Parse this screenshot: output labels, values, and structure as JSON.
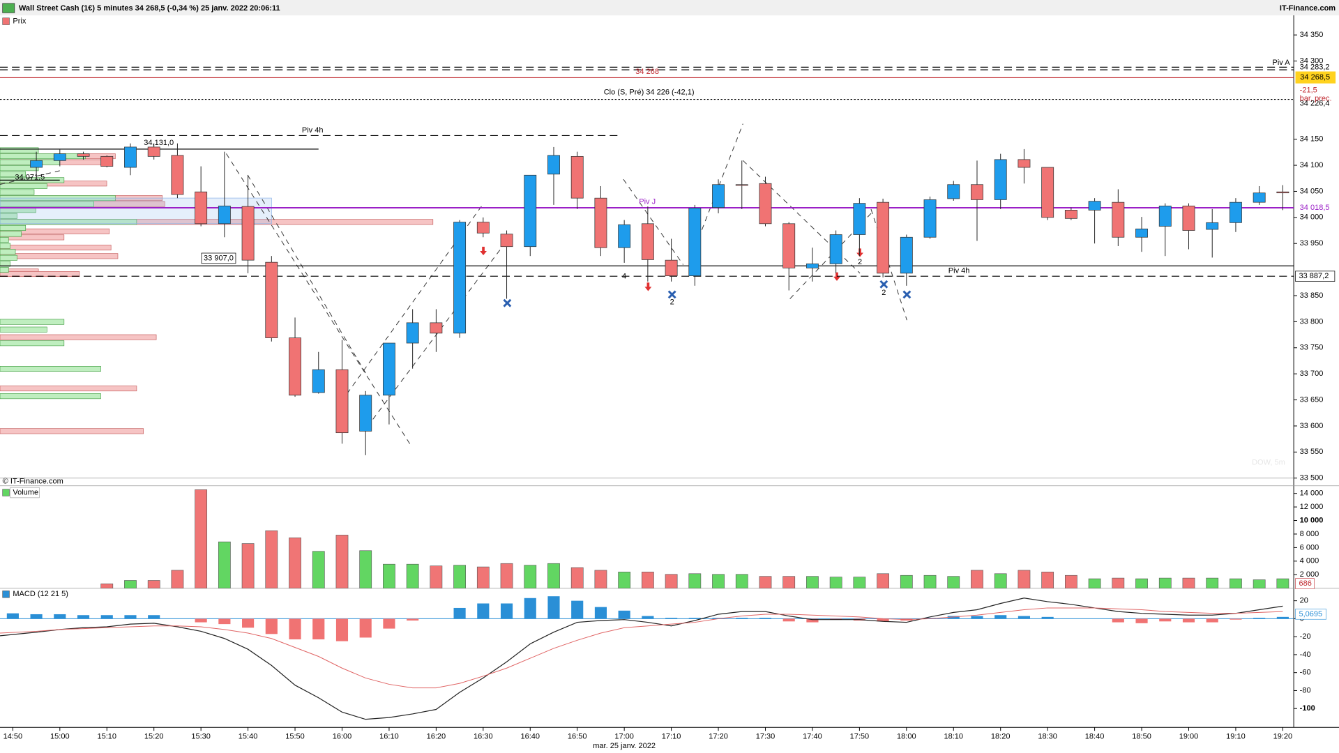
{
  "chart_data": [
    {
      "type": "candlestick",
      "title": "Wall Street Cash (1€) 5 minutes 34 268,5 (-0,34 %) 25 janv. 2022 20:06:11",
      "source": "IT-Finance.com",
      "copyright": "© IT-Finance.com",
      "panel_label": "Prix",
      "watermark": "DOW, 5m",
      "date_label": "mar. 25 janv. 2022",
      "categories": [
        "14:50",
        null,
        "15:00",
        null,
        "15:10",
        null,
        "15:20",
        null,
        "15:30",
        null,
        "15:40",
        null,
        "15:50",
        null,
        "16:00",
        null,
        "16:10",
        null,
        "16:20",
        null,
        "16:30",
        null,
        "16:40",
        null,
        "16:50",
        null,
        "17:00",
        null,
        "17:10",
        null,
        "17:20",
        null,
        "17:30",
        null,
        "17:40",
        null,
        "17:50",
        null,
        "18:00",
        null,
        "18:10",
        null,
        "18:20",
        null,
        "18:30",
        null,
        "18:40",
        null,
        "18:50",
        null,
        "19:00",
        null,
        "19:10",
        null,
        "19:20"
      ],
      "open": [
        null,
        34096,
        34109,
        34122,
        34117,
        34096,
        34135,
        34119,
        34049,
        33988,
        34021,
        33914,
        33769,
        33664,
        33708,
        33590,
        33659,
        33759,
        33798,
        33778,
        33991,
        33968,
        33944,
        34083,
        34117,
        34037,
        33942,
        33988,
        33918,
        33888,
        34019,
        34063,
        34065,
        33988,
        33903,
        33911,
        33967,
        34029,
        33893,
        33962,
        34036,
        34063,
        34034,
        34111,
        34096,
        34014,
        34014,
        34029,
        33962,
        33983,
        34022,
        33977,
        33990,
        34029,
        34049
      ],
      "high": [
        null,
        34126,
        34131,
        34126,
        34119,
        34142,
        34142,
        34142,
        34098,
        34126,
        34081,
        33926,
        33808,
        33742,
        33765,
        33667,
        33759,
        33824,
        33824,
        33995,
        34000,
        33975,
        34081,
        34135,
        34126,
        34060,
        33995,
        34021,
        33959,
        34024,
        34073,
        34109,
        34078,
        33991,
        33942,
        33975,
        34037,
        34036,
        33967,
        34040,
        34070,
        34109,
        34122,
        34131,
        34096,
        34019,
        34037,
        34054,
        34001,
        34027,
        34027,
        34016,
        34037,
        34060,
        34062
      ],
      "low": [
        null,
        34073,
        34098,
        34111,
        34096,
        34081,
        34111,
        34037,
        33983,
        33962,
        33893,
        33762,
        33656,
        33662,
        33566,
        33544,
        33603,
        33710,
        33742,
        33769,
        33962,
        33844,
        33926,
        34024,
        34016,
        33926,
        33913,
        33877,
        33877,
        33869,
        34008,
        34016,
        33983,
        33860,
        33877,
        33893,
        33926,
        33885,
        33869,
        33959,
        34032,
        33955,
        34016,
        34065,
        33995,
        33995,
        33950,
        33945,
        33934,
        33926,
        33939,
        33923,
        33972,
        34024,
        34014
      ],
      "close": [
        null,
        34109,
        34122,
        34117,
        34098,
        34135,
        34117,
        34044,
        33988,
        34022,
        33918,
        33769,
        33659,
        33708,
        33587,
        33659,
        33759,
        33798,
        33778,
        33991,
        33970,
        33944,
        34081,
        34119,
        34037,
        33942,
        33986,
        33919,
        33888,
        34018,
        34063,
        34062,
        33988,
        33903,
        33911,
        33967,
        34027,
        33893,
        33962,
        34034,
        34063,
        34034,
        34111,
        34096,
        34000,
        33998,
        34031,
        33962,
        33978,
        34022,
        33975,
        33990,
        34029,
        34047,
        34047
      ],
      "up_color": "#1e9cec",
      "down_color": "#f07373",
      "ylim": [
        33500,
        34363
      ],
      "yticks": [
        {
          "value": 34350,
          "label": "34 350"
        },
        {
          "value": 34300,
          "label": "34 300"
        },
        {
          "value": 34150,
          "label": "34 150"
        },
        {
          "value": 34100,
          "label": "34 100"
        },
        {
          "value": 34050,
          "label": "34 050"
        },
        {
          "value": 34000,
          "label": "34 000"
        },
        {
          "value": 33950,
          "label": "33 950"
        },
        {
          "value": 33850,
          "label": "33 850"
        },
        {
          "value": 33800,
          "label": "33 800"
        },
        {
          "value": 33750,
          "label": "33 750"
        },
        {
          "value": 33700,
          "label": "33 700"
        },
        {
          "value": 33650,
          "label": "33 650"
        },
        {
          "value": 33600,
          "label": "33 600"
        },
        {
          "value": 33550,
          "label": "33 550"
        },
        {
          "value": 33500,
          "label": "33 500"
        }
      ],
      "levels": [
        {
          "text": "Piv A",
          "value": 34283.2,
          "value_label": "34 283,2",
          "style": "dashed",
          "color": "#000000"
        },
        {
          "value": 34268,
          "value_label": "34 268",
          "style": "solid",
          "color": "#c0282f"
        },
        {
          "text": "Clo (S, Pré) 34 226 (-42,1)",
          "value": 34226.4,
          "value_label": "34 226,4",
          "style": "dotted",
          "color": "#000000"
        },
        {
          "text": "Piv 4h",
          "value": 34157,
          "style": "dashed",
          "color": "#000000"
        },
        {
          "value": 34131,
          "value_label": "34,131,0",
          "style": "solid",
          "color": "#000000"
        },
        {
          "value": 34071.5,
          "value_label": "34,071,5",
          "style": "solid",
          "color": "#000000"
        },
        {
          "text": "Piv J",
          "value": 34018.5,
          "value_label": "34 018,5",
          "style": "solid",
          "color": "#9b1fc7"
        },
        {
          "value": 33907,
          "value_label": "33 907,0",
          "style": "solid",
          "color": "#000000"
        },
        {
          "text": "Piv 4h",
          "value": 33887.2,
          "value_label": "33 887,2",
          "style": "dashed",
          "color": "#000000"
        }
      ],
      "last": {
        "value": 34268.5,
        "label": "34 268,5",
        "change": "-21,5",
        "note": "bar. prec."
      },
      "signal_labels": [
        "4",
        "2",
        "2",
        "2"
      ]
    },
    {
      "type": "bar",
      "panel_label": "Volume",
      "values": [
        null,
        null,
        null,
        null,
        650,
        1150,
        1150,
        2650,
        14550,
        6850,
        6600,
        8500,
        7450,
        5450,
        7850,
        5550,
        3550,
        3550,
        3300,
        3400,
        3150,
        3650,
        3400,
        3650,
        3050,
        2650,
        2400,
        2400,
        2050,
        2150,
        2050,
        2050,
        1750,
        1750,
        1750,
        1650,
        1650,
        2150,
        1900,
        1900,
        1750,
        2650,
        2150,
        2650,
        2400,
        1900,
        1400,
        1500,
        1400,
        1500,
        1500,
        1500,
        1400,
        1250,
        1400
      ],
      "colors": [
        null,
        null,
        null,
        null,
        "#f07575",
        "#62d662",
        "#f07575",
        "#f07575",
        "#f07575",
        "#62d662",
        "#f07575",
        "#f07575",
        "#f07575",
        "#62d662",
        "#f07575",
        "#62d662",
        "#62d662",
        "#62d662",
        "#f07575",
        "#62d662",
        "#f07575",
        "#f07575",
        "#62d662",
        "#62d662",
        "#f07575",
        "#f07575",
        "#62d662",
        "#f07575",
        "#f07575",
        "#62d662",
        "#62d662",
        "#62d662",
        "#f07575",
        "#f07575",
        "#62d662",
        "#62d662",
        "#62d662",
        "#f07575",
        "#62d662",
        "#62d662",
        "#62d662",
        "#f07575",
        "#62d662",
        "#f07575",
        "#f07575",
        "#f07575",
        "#62d662",
        "#f07575",
        "#62d662",
        "#62d662",
        "#f07575",
        "#62d662",
        "#62d662",
        "#62d662",
        "#62d662"
      ],
      "ylim": [
        0,
        15000
      ],
      "yticks": [
        {
          "value": 14000,
          "label": "14 000"
        },
        {
          "value": 12000,
          "label": "12 000"
        },
        {
          "value": 10000,
          "label": "10 000"
        },
        {
          "value": 8000,
          "label": "8 000"
        },
        {
          "value": 6000,
          "label": "6 000"
        },
        {
          "value": 4000,
          "label": "4 000"
        },
        {
          "value": 2000,
          "label": "2 000"
        }
      ],
      "last": {
        "value": 686,
        "color": "#c0282f"
      }
    },
    {
      "type": "macd",
      "panel_label": "MACD (12 21 5)",
      "histogram": [
        6,
        5,
        5,
        4,
        4,
        4,
        4,
        0,
        -4,
        -6,
        -10,
        -17,
        -23,
        -23,
        -25,
        -21,
        -11,
        -2,
        0,
        12,
        17,
        17,
        23,
        25,
        20,
        13,
        9,
        3,
        1,
        1,
        1,
        1,
        1,
        -3,
        -4,
        -1,
        -2,
        -3,
        -2,
        1,
        3,
        3,
        4,
        3,
        2,
        0,
        0,
        -4,
        -5,
        -3,
        -4,
        -4,
        -1,
        1,
        2
      ],
      "series": [
        {
          "color": "#222222",
          "values": [
            -19,
            -15,
            -12,
            -10,
            -9,
            -6,
            -5,
            -9,
            -14,
            -22,
            -34,
            -52,
            -74,
            -88,
            -104,
            -112,
            -110,
            -106,
            -101,
            -82,
            -66,
            -48,
            -28,
            -15,
            -4,
            -2,
            -1,
            -4,
            -8,
            -2,
            5,
            8,
            8,
            3,
            -1,
            -1,
            -1,
            -3,
            -4,
            2,
            7,
            10,
            17,
            23,
            19,
            16,
            12,
            8,
            6,
            5,
            4,
            4,
            6,
            10,
            14
          ]
        },
        {
          "color": "#e06464",
          "values": [
            -16,
            -14,
            -12,
            -11,
            -10,
            -9,
            -8,
            -8,
            -9,
            -12,
            -16,
            -22,
            -32,
            -42,
            -55,
            -66,
            -73,
            -77,
            -77,
            -72,
            -64,
            -55,
            -44,
            -33,
            -24,
            -16,
            -10,
            -8,
            -6,
            -4,
            0,
            3,
            5,
            5,
            4,
            3,
            2,
            0,
            -1,
            0,
            2,
            4,
            7,
            10,
            12,
            12,
            12,
            11,
            10,
            8,
            7,
            6,
            6,
            7,
            8
          ]
        }
      ],
      "pos_color": "#2a8fd6",
      "neg_color": "#f07373",
      "ylim": [
        -121,
        33
      ],
      "yticks": [
        20,
        0,
        -20,
        -40,
        -60,
        -80,
        -100
      ],
      "last": {
        "value": 5.0695,
        "label": "5,0695",
        "color": "#2a8fd6"
      }
    }
  ]
}
